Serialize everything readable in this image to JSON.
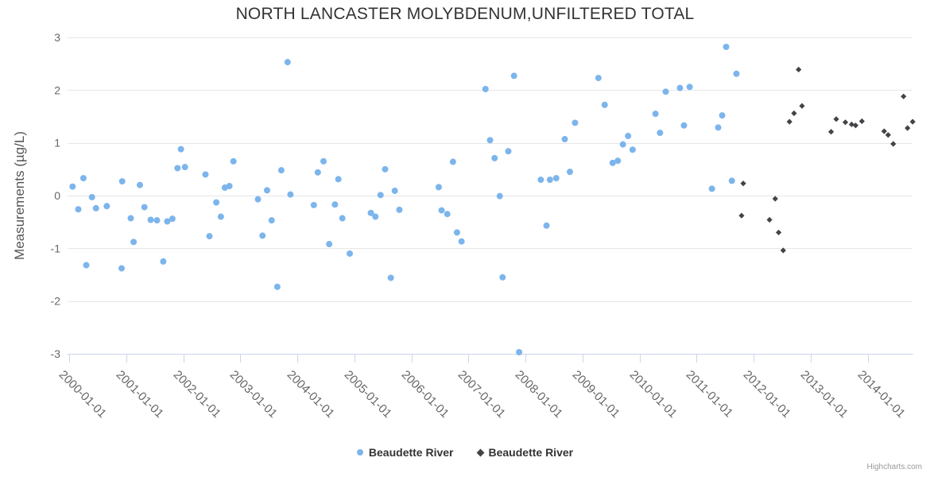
{
  "credits": {
    "label": "Highcharts.com"
  },
  "chart_data": {
    "type": "scatter",
    "title": "NORTH LANCASTER MOLYBDENUM,UNFILTERED TOTAL",
    "xlabel": "",
    "ylabel": "Measurements (µg/L)",
    "ylim": [
      -3,
      3
    ],
    "y_ticks": [
      -3,
      -2,
      -1,
      0,
      1,
      2,
      3
    ],
    "x_tick_years": [
      2000,
      2001,
      2002,
      2003,
      2004,
      2005,
      2006,
      2007,
      2008,
      2009,
      2010,
      2011,
      2012,
      2013,
      2014
    ],
    "x_tick_labels": [
      "2000-01-01",
      "2001-01-01",
      "2002-01-01",
      "2003-01-01",
      "2004-01-01",
      "2005-01-01",
      "2006-01-01",
      "2007-01-01",
      "2008-01-01",
      "2009-01-01",
      "2010-01-01",
      "2011-01-01",
      "2012-01-01",
      "2013-01-01",
      "2014-01-01"
    ],
    "grid": "horizontal",
    "legend_position": "bottom-center",
    "series": [
      {
        "name": "Beaudette River",
        "marker": "circle",
        "color": "#7cb5ec",
        "points": [
          [
            2000.06,
            0.17
          ],
          [
            2000.16,
            -0.26
          ],
          [
            2000.25,
            0.33
          ],
          [
            2000.3,
            -1.32
          ],
          [
            2000.4,
            -0.03
          ],
          [
            2000.47,
            -0.24
          ],
          [
            2000.66,
            -0.2
          ],
          [
            2000.92,
            -1.38
          ],
          [
            2000.93,
            0.27
          ],
          [
            2001.08,
            -0.43
          ],
          [
            2001.13,
            -0.88
          ],
          [
            2001.24,
            0.2
          ],
          [
            2001.32,
            -0.22
          ],
          [
            2001.43,
            -0.46
          ],
          [
            2001.54,
            -0.47
          ],
          [
            2001.65,
            -1.25
          ],
          [
            2001.72,
            -0.49
          ],
          [
            2001.81,
            -0.44
          ],
          [
            2001.9,
            0.52
          ],
          [
            2001.96,
            0.88
          ],
          [
            2002.03,
            0.54
          ],
          [
            2002.39,
            0.4
          ],
          [
            2002.46,
            -0.77
          ],
          [
            2002.58,
            -0.13
          ],
          [
            2002.66,
            -0.4
          ],
          [
            2002.73,
            0.15
          ],
          [
            2002.81,
            0.18
          ],
          [
            2002.88,
            0.65
          ],
          [
            2003.31,
            -0.07
          ],
          [
            2003.39,
            -0.76
          ],
          [
            2003.47,
            0.1
          ],
          [
            2003.55,
            -0.47
          ],
          [
            2003.65,
            -1.73
          ],
          [
            2003.72,
            0.48
          ],
          [
            2003.83,
            2.53
          ],
          [
            2003.88,
            0.02
          ],
          [
            2004.29,
            -0.18
          ],
          [
            2004.36,
            0.44
          ],
          [
            2004.46,
            0.65
          ],
          [
            2004.56,
            -0.92
          ],
          [
            2004.66,
            -0.17
          ],
          [
            2004.72,
            0.31
          ],
          [
            2004.79,
            -0.43
          ],
          [
            2004.92,
            -1.1
          ],
          [
            2005.29,
            -0.33
          ],
          [
            2005.37,
            -0.4
          ],
          [
            2005.46,
            0.01
          ],
          [
            2005.54,
            0.5
          ],
          [
            2005.64,
            -1.56
          ],
          [
            2005.71,
            0.09
          ],
          [
            2005.79,
            -0.27
          ],
          [
            2006.48,
            0.16
          ],
          [
            2006.53,
            -0.28
          ],
          [
            2006.63,
            -0.35
          ],
          [
            2006.73,
            0.64
          ],
          [
            2006.8,
            -0.7
          ],
          [
            2006.88,
            -0.87
          ],
          [
            2007.3,
            2.02
          ],
          [
            2007.38,
            1.05
          ],
          [
            2007.46,
            0.71
          ],
          [
            2007.55,
            -0.01
          ],
          [
            2007.6,
            -1.55
          ],
          [
            2007.7,
            0.84
          ],
          [
            2007.8,
            2.27
          ],
          [
            2007.89,
            -2.97
          ],
          [
            2008.27,
            0.3
          ],
          [
            2008.37,
            -0.57
          ],
          [
            2008.43,
            0.3
          ],
          [
            2008.54,
            0.33
          ],
          [
            2008.69,
            1.07
          ],
          [
            2008.78,
            0.45
          ],
          [
            2008.87,
            1.38
          ],
          [
            2009.28,
            2.23
          ],
          [
            2009.39,
            1.72
          ],
          [
            2009.53,
            0.62
          ],
          [
            2009.62,
            0.66
          ],
          [
            2009.71,
            0.97
          ],
          [
            2009.8,
            1.13
          ],
          [
            2009.88,
            0.87
          ],
          [
            2010.28,
            1.55
          ],
          [
            2010.36,
            1.19
          ],
          [
            2010.46,
            1.97
          ],
          [
            2010.71,
            2.04
          ],
          [
            2010.78,
            1.33
          ],
          [
            2010.88,
            2.06
          ],
          [
            2011.27,
            0.13
          ],
          [
            2011.38,
            1.29
          ],
          [
            2011.45,
            1.52
          ],
          [
            2011.52,
            2.82
          ],
          [
            2011.62,
            0.28
          ],
          [
            2011.7,
            2.31
          ]
        ]
      },
      {
        "name": "Beaudette River",
        "marker": "diamond",
        "color": "#434348",
        "points": [
          [
            2011.79,
            -0.38
          ],
          [
            2011.82,
            0.23
          ],
          [
            2012.28,
            -0.46
          ],
          [
            2012.38,
            -0.06
          ],
          [
            2012.44,
            -0.7
          ],
          [
            2012.52,
            -1.04
          ],
          [
            2012.63,
            1.4
          ],
          [
            2012.71,
            1.56
          ],
          [
            2012.79,
            2.39
          ],
          [
            2012.85,
            1.7
          ],
          [
            2013.36,
            1.21
          ],
          [
            2013.45,
            1.45
          ],
          [
            2013.61,
            1.39
          ],
          [
            2013.72,
            1.35
          ],
          [
            2013.79,
            1.33
          ],
          [
            2013.9,
            1.41
          ],
          [
            2014.29,
            1.22
          ],
          [
            2014.36,
            1.15
          ],
          [
            2014.45,
            0.98
          ],
          [
            2014.63,
            1.88
          ],
          [
            2014.7,
            1.28
          ],
          [
            2014.79,
            1.4
          ]
        ]
      }
    ],
    "colors": {
      "grid": "#e6e6e6",
      "axis_line": "#ccd6eb",
      "tick_label": "#666666",
      "title": "#333333"
    }
  }
}
